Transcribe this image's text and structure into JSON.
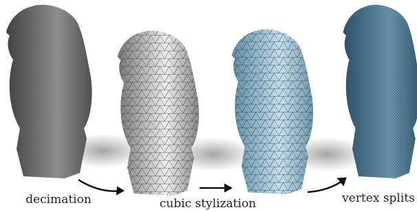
{
  "labels": {
    "step1": "decimation",
    "step2": "cubic stylization",
    "step3": "vertex splits"
  }
}
